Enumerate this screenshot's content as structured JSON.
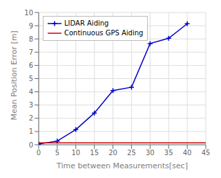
{
  "chart_data": {
    "type": "line",
    "xlabel": "Time between Measurements[sec]",
    "ylabel": "Mean Position Error [m]",
    "xlim": [
      0,
      45
    ],
    "ylim": [
      0,
      10
    ],
    "xticks": [
      0,
      5,
      10,
      15,
      20,
      25,
      30,
      35,
      40,
      45
    ],
    "yticks": [
      0,
      1,
      2,
      3,
      4,
      5,
      6,
      7,
      8,
      9,
      10
    ],
    "grid": true,
    "legend": "upper left",
    "series": [
      {
        "name": "LIDAR Aiding",
        "color": "#0000cc",
        "marker": "plus",
        "x": [
          0,
          5,
          10,
          15,
          20,
          25,
          30,
          35,
          40
        ],
        "values": [
          0.05,
          0.28,
          1.15,
          2.4,
          4.1,
          4.35,
          7.65,
          8.05,
          9.15
        ]
      },
      {
        "name": "Continuous GPS Aiding",
        "color": "#cc0000",
        "x": [
          0,
          45
        ],
        "values": [
          0.15,
          0.15
        ]
      }
    ]
  }
}
